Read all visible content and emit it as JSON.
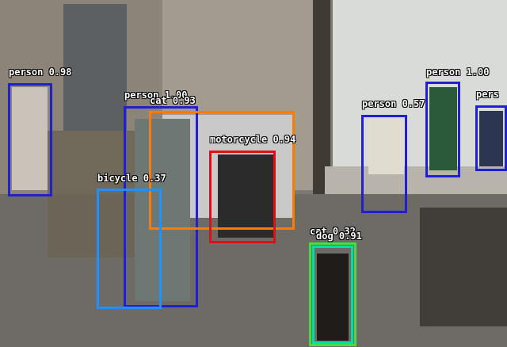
{
  "detections": [
    {
      "label": "person 0.98",
      "color": "#2020d0"
    },
    {
      "label": "person 1.00",
      "color": "#2020d0"
    },
    {
      "label": "cat 0.93",
      "color": "#ff7a00"
    },
    {
      "label": "motorcycle 0.94",
      "color": "#e01010"
    },
    {
      "label": "bicycle 0.37",
      "color": "#1e90ff"
    },
    {
      "label": "person 0.57",
      "color": "#2020d0"
    },
    {
      "label": "person 1.00",
      "color": "#2020d0"
    },
    {
      "label": "pers",
      "color": "#2020d0"
    },
    {
      "label": "cat 0.32",
      "color": "#40e040"
    },
    {
      "label": "dog 0.91",
      "color": "#00e0a0"
    }
  ]
}
